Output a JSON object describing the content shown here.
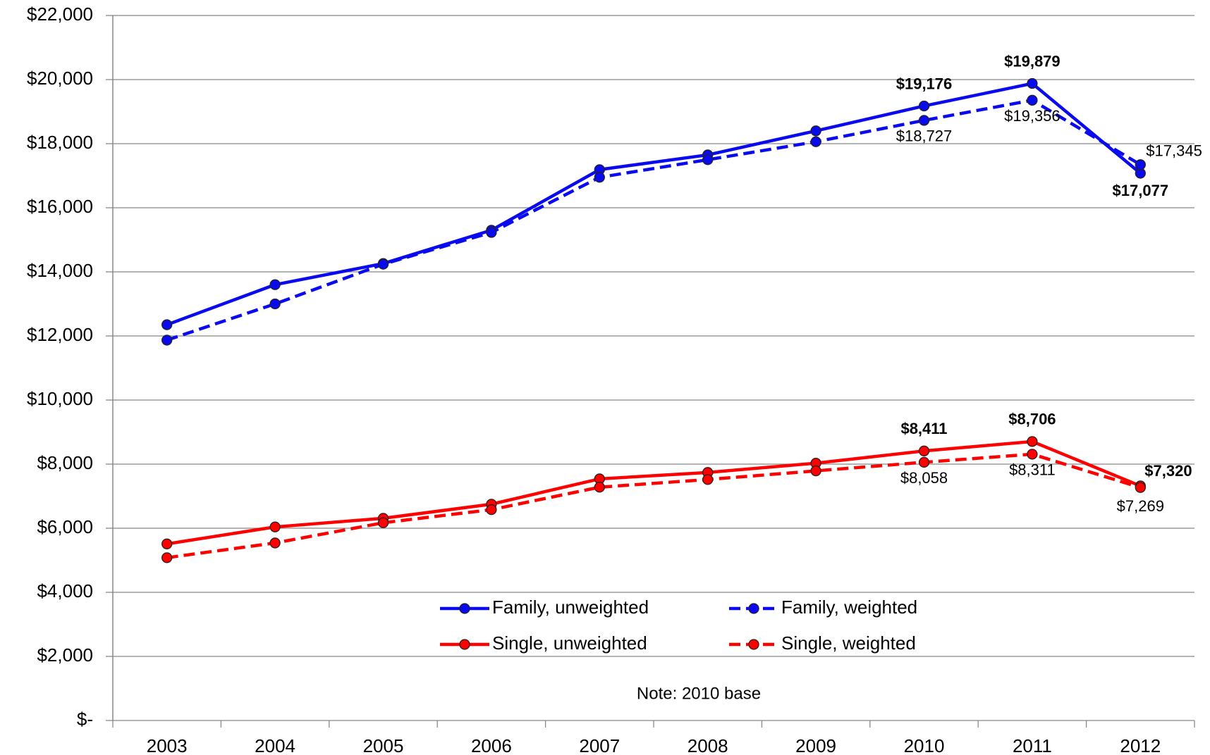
{
  "chart_data": {
    "type": "line",
    "categories": [
      "2003",
      "2004",
      "2005",
      "2006",
      "2007",
      "2008",
      "2009",
      "2010",
      "2011",
      "2012"
    ],
    "series": [
      {
        "name": "Family, unweighted",
        "color": "#0a0aee",
        "dashed": false,
        "values": [
          12350,
          13600,
          14260,
          15300,
          17190,
          17650,
          18400,
          19176,
          19879,
          17077
        ],
        "value_labels": [
          null,
          null,
          null,
          null,
          null,
          null,
          null,
          "$19,176",
          "$19,879",
          "$17,077"
        ]
      },
      {
        "name": "Family, weighted",
        "color": "#0a0aee",
        "dashed": true,
        "values": [
          11870,
          13000,
          14240,
          15230,
          16950,
          17500,
          18060,
          18727,
          19356,
          17345
        ],
        "value_labels": [
          null,
          null,
          null,
          null,
          null,
          null,
          null,
          "$18,727",
          "$19,356",
          "$17,345"
        ]
      },
      {
        "name": "Single, unweighted",
        "color": "#ff0000",
        "dashed": false,
        "values": [
          5510,
          6040,
          6310,
          6750,
          7540,
          7740,
          8030,
          8411,
          8706,
          7320
        ],
        "value_labels": [
          null,
          null,
          null,
          null,
          null,
          null,
          null,
          "$8,411",
          "$8,706",
          "$7,320"
        ]
      },
      {
        "name": "Single, weighted",
        "color": "#ff0000",
        "dashed": true,
        "values": [
          5080,
          5540,
          6170,
          6580,
          7280,
          7520,
          7790,
          8058,
          8311,
          7269
        ],
        "value_labels": [
          null,
          null,
          null,
          null,
          null,
          null,
          null,
          "$8,058",
          "$8,311",
          "$7,269"
        ]
      }
    ],
    "ylim": [
      0,
      22000
    ],
    "yticks": [
      {
        "value": 0,
        "label": "$-"
      },
      {
        "value": 2000,
        "label": "$2,000"
      },
      {
        "value": 4000,
        "label": "$4,000"
      },
      {
        "value": 6000,
        "label": "$6,000"
      },
      {
        "value": 8000,
        "label": "$8,000"
      },
      {
        "value": 10000,
        "label": "$10,000"
      },
      {
        "value": 12000,
        "label": "$12,000"
      },
      {
        "value": 14000,
        "label": "$14,000"
      },
      {
        "value": 16000,
        "label": "$16,000"
      },
      {
        "value": 18000,
        "label": "$18,000"
      },
      {
        "value": 20000,
        "label": "$20,000"
      },
      {
        "value": 22000,
        "label": "$22,000"
      }
    ],
    "grid": true,
    "legend": "lower center",
    "annotation": "Note:  2010 base"
  }
}
